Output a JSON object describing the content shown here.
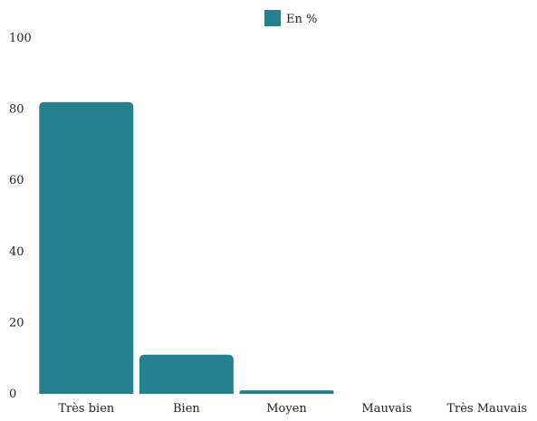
{
  "chart_data": {
    "type": "bar",
    "categories": [
      "Très bien",
      "Bien",
      "Moyen",
      "Mauvais",
      "Très Mauvais"
    ],
    "series": [
      {
        "name": "En %",
        "values": [
          82,
          11,
          1,
          0,
          0
        ]
      }
    ],
    "ylim": [
      0,
      100
    ],
    "yticks": [
      0,
      20,
      40,
      60,
      80,
      100
    ],
    "legend_position": "top-center",
    "grid": false,
    "colors": {
      "bar": "#24818d"
    }
  }
}
